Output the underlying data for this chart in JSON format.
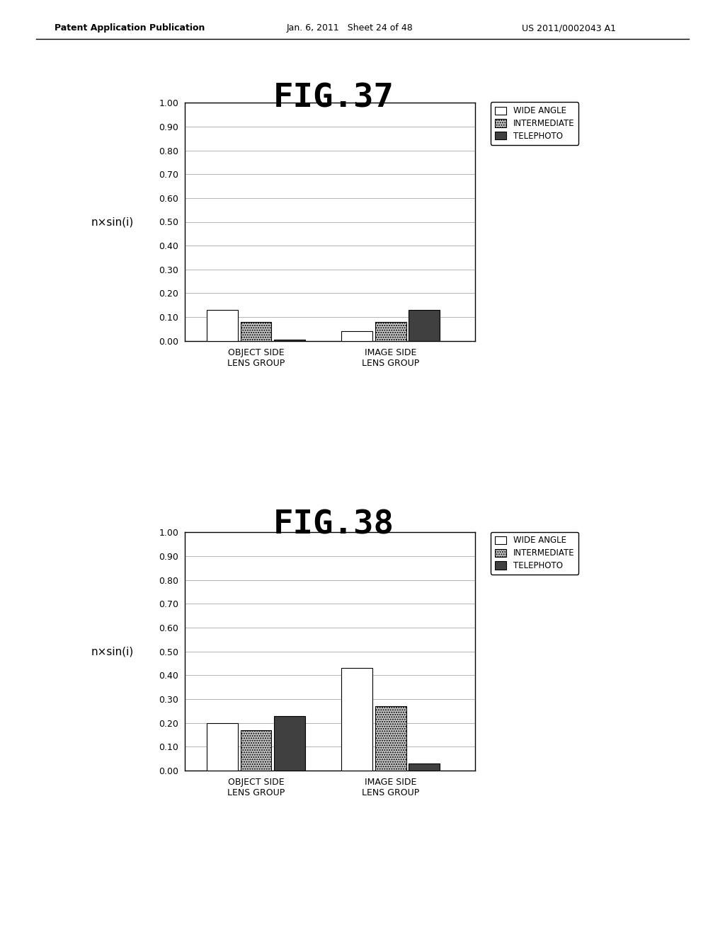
{
  "fig37": {
    "title": "FIG.37",
    "ylabel": "n×sin(i)",
    "groups": [
      "OBJECT SIDE\nLENS GROUP",
      "IMAGE SIDE\nLENS GROUP"
    ],
    "series": [
      "WIDE ANGLE",
      "INTERMEDIATE",
      "TELEPHOTO"
    ],
    "values": [
      [
        0.13,
        0.08,
        0.005
      ],
      [
        0.04,
        0.08,
        0.13
      ]
    ],
    "ylim": [
      0.0,
      1.0
    ],
    "yticks": [
      0.0,
      0.1,
      0.2,
      0.3,
      0.4,
      0.5,
      0.6,
      0.7,
      0.8,
      0.9,
      1.0
    ]
  },
  "fig38": {
    "title": "FIG.38",
    "ylabel": "n×sin(i)",
    "groups": [
      "OBJECT SIDE\nLENS GROUP",
      "IMAGE SIDE\nLENS GROUP"
    ],
    "series": [
      "WIDE ANGLE",
      "INTERMEDIATE",
      "TELEPHOTO"
    ],
    "values": [
      [
        0.2,
        0.17,
        0.23
      ],
      [
        0.43,
        0.27,
        0.03
      ]
    ],
    "ylim": [
      0.0,
      1.0
    ],
    "yticks": [
      0.0,
      0.1,
      0.2,
      0.3,
      0.4,
      0.5,
      0.6,
      0.7,
      0.8,
      0.9,
      1.0
    ]
  },
  "edge_color": "#000000",
  "background_color": "#ffffff",
  "header_left": "Patent Application Publication",
  "header_mid": "Jan. 6, 2011   Sheet 24 of 48",
  "header_right": "US 2011/0002043 A1",
  "hatch_patterns": [
    "",
    ".....",
    ""
  ],
  "bar_colors": [
    "#ffffff",
    "#c8c8c8",
    "#404040"
  ],
  "legend_labels": [
    "WIDE ANGLE",
    "INTERMEDIATE",
    "TELEPHOTO"
  ]
}
